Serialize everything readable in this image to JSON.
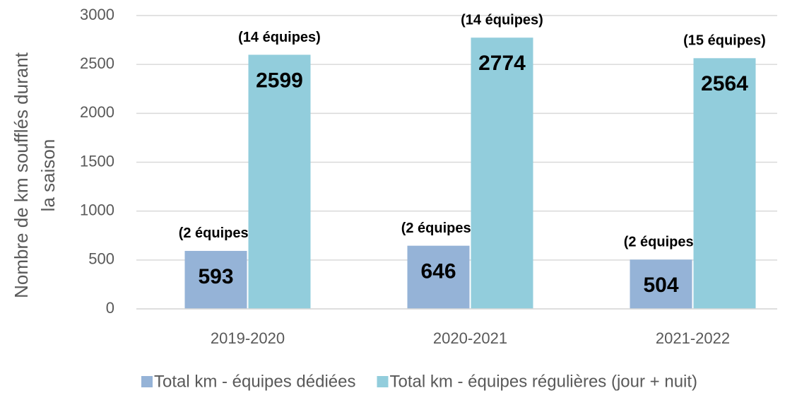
{
  "chart_data": {
    "type": "bar",
    "y_axis_label": [
      "Nombre de km soufflés durant",
      "la saison"
    ],
    "categories": [
      "2019-2020",
      "2020-2021",
      "2021-2022"
    ],
    "series": [
      {
        "name": "Total km - équipes dédiées",
        "color": "#95b3d7",
        "values": [
          593,
          646,
          504
        ],
        "annotations": [
          "(2 équipes)",
          "(2 équipes)",
          "(2 équipes)"
        ]
      },
      {
        "name": "Total km - équipes régulières (jour + nuit)",
        "color": "#92cddc",
        "values": [
          2599,
          2774,
          2564
        ],
        "annotations": [
          "(14 équipes)",
          "(14 équipes)",
          "(15 équipes)"
        ]
      }
    ],
    "ylim": [
      0,
      3000
    ],
    "yticks": [
      0,
      500,
      1000,
      1500,
      2000,
      2500,
      3000
    ],
    "grid": true,
    "legend": "bottom"
  }
}
